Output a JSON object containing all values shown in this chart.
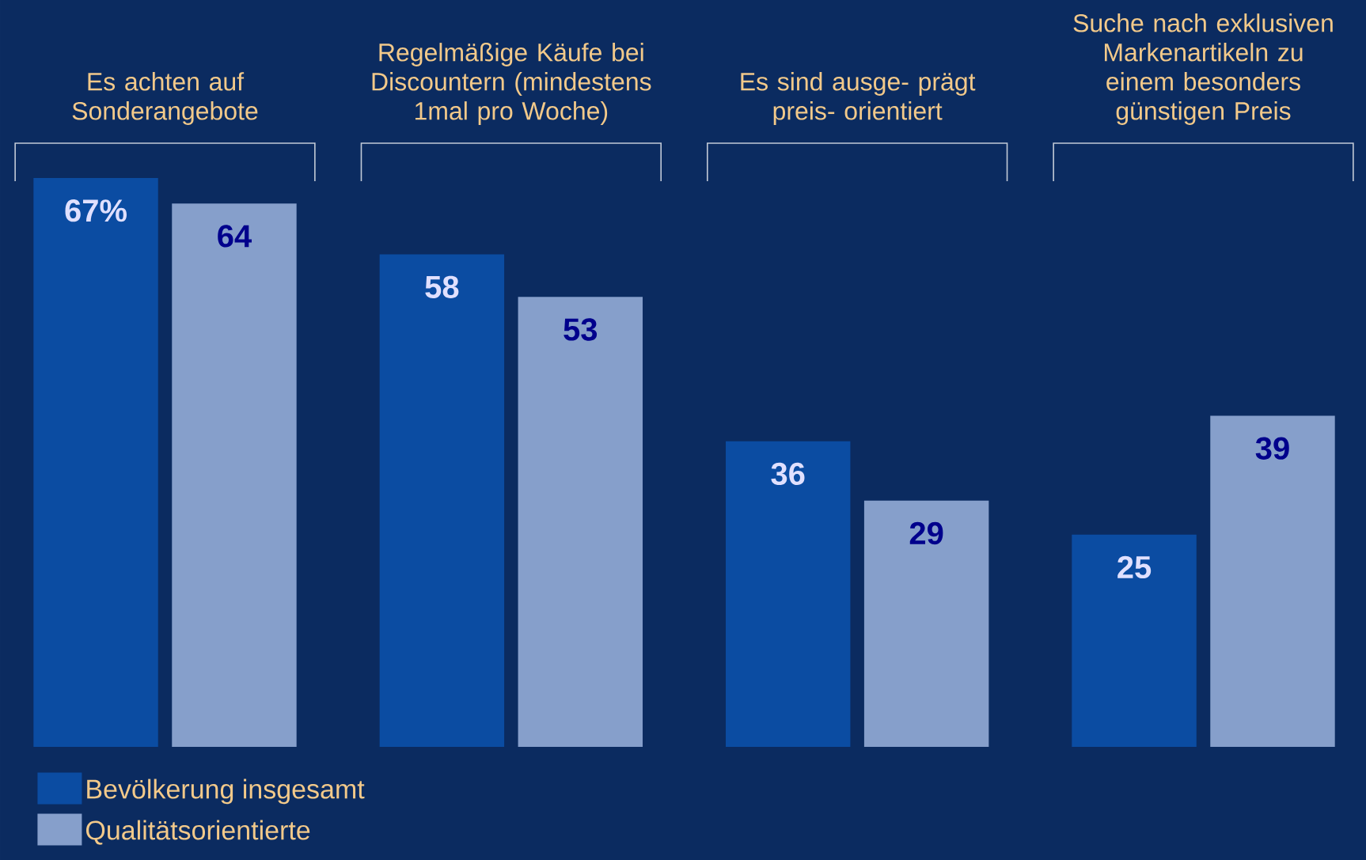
{
  "chart_data": {
    "type": "bar",
    "categories": [
      "Es achten auf Sonderangebote",
      "Regelmäßige Käufe bei Discountern (mindestens 1mal pro Woche)",
      "Es sind ausge- prägt preis- orientiert",
      "Suche nach exklusiven Markenartikeln zu einem besonders günstigen Preis"
    ],
    "series": [
      {
        "name": "Bevölkerung insgesamt",
        "color": "#0b4ca2",
        "values": [
          67,
          58,
          36,
          25
        ],
        "value_labels": [
          "67%",
          "58",
          "36",
          "25"
        ]
      },
      {
        "name": "Qualitätsorientierte",
        "color": "#869fcb",
        "values": [
          64,
          53,
          29,
          39
        ],
        "value_labels": [
          "64",
          "53",
          "29",
          "39"
        ]
      }
    ],
    "legend": "bottom left",
    "grid": false
  }
}
